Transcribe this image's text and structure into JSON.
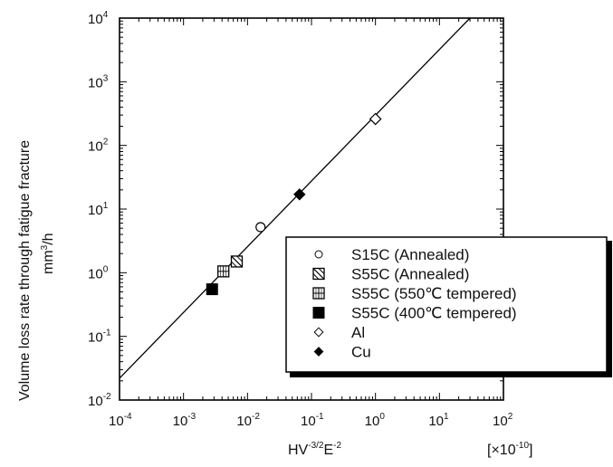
{
  "chart_data": {
    "type": "scatter",
    "xscale": "log",
    "yscale": "log",
    "xlim": [
      0.0001,
      100
    ],
    "ylim": [
      0.01,
      10000
    ],
    "x_ticks": [
      {
        "base": "10",
        "exp": "-4"
      },
      {
        "base": "10",
        "exp": "-3"
      },
      {
        "base": "10",
        "exp": "-2"
      },
      {
        "base": "10",
        "exp": "-1"
      },
      {
        "base": "10",
        "exp": "0"
      },
      {
        "base": "10",
        "exp": "1"
      },
      {
        "base": "10",
        "exp": "2"
      }
    ],
    "y_ticks": [
      {
        "base": "10",
        "exp": "-2"
      },
      {
        "base": "10",
        "exp": "-1"
      },
      {
        "base": "10",
        "exp": "0"
      },
      {
        "base": "10",
        "exp": "1"
      },
      {
        "base": "10",
        "exp": "2"
      },
      {
        "base": "10",
        "exp": "3"
      },
      {
        "base": "10",
        "exp": "4"
      }
    ],
    "xlabel": {
      "main": "HV",
      "exp1": "-3/2",
      "mid": "E",
      "exp2": "-2",
      "unit": "[×10",
      "unit_exp": "-10",
      "unit_close": "]"
    },
    "ylabel": {
      "line1": "Volume loss rate through fatigue fracture",
      "line2_base": "mm",
      "line2_exp": "3",
      "line2_rest": "/h"
    },
    "grid": false,
    "legend_position": "bottom-right",
    "fit_line": {
      "x": [
        0.0001,
        30
      ],
      "y": [
        0.022,
        10000
      ]
    },
    "series": [
      {
        "name": "S15C (Annealed)",
        "marker": "open-circle",
        "points": [
          {
            "x": 0.016,
            "y": 5.2
          }
        ]
      },
      {
        "name": "S55C (Annealed)",
        "marker": "hatched-square",
        "points": [
          {
            "x": 0.0068,
            "y": 1.5
          }
        ]
      },
      {
        "name": "S55C (550℃ tempered)",
        "marker": "grid-square",
        "points": [
          {
            "x": 0.0042,
            "y": 1.05
          }
        ]
      },
      {
        "name": "S55C (400℃ tempered)",
        "marker": "filled-square",
        "points": [
          {
            "x": 0.0028,
            "y": 0.55
          }
        ]
      },
      {
        "name": "Al",
        "marker": "open-diamond",
        "points": [
          {
            "x": 1.0,
            "y": 260
          }
        ]
      },
      {
        "name": "Cu",
        "marker": "filled-diamond",
        "points": [
          {
            "x": 0.065,
            "y": 17
          }
        ]
      }
    ]
  }
}
